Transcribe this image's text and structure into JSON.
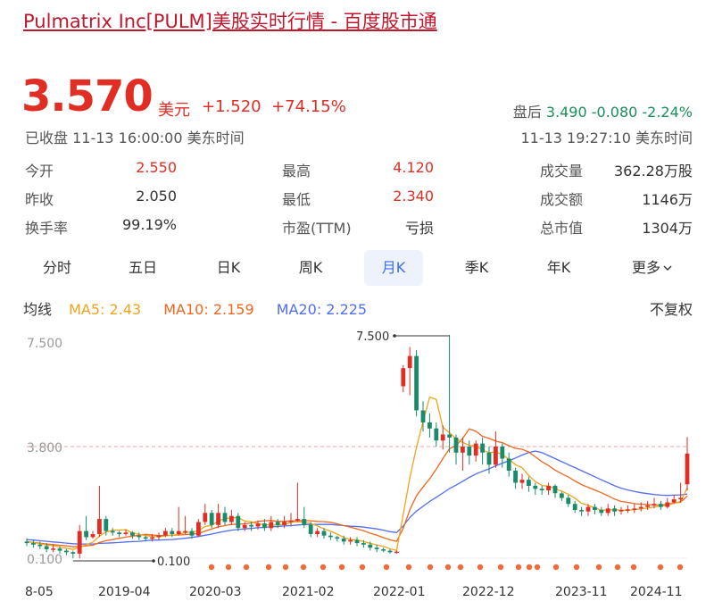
{
  "header": {
    "title": "Pulmatrix Inc[PULM]美股实时行情 - 百度股市通"
  },
  "quote": {
    "price": "3.570",
    "currency": "美元",
    "change": "+1.520",
    "change_pct": "+74.15%",
    "closed_label": "已收盘 11-13 16:00:00 美东时间",
    "after_label": "盘后",
    "after_price": "3.490",
    "after_change": "-0.080",
    "after_pct": "-2.24%",
    "after_time": "11-13 19:27:10 美东时间"
  },
  "stats": [
    {
      "label": "今开",
      "value": "2.550"
    },
    {
      "label": "最高",
      "value": "4.120"
    },
    {
      "label": "成交量",
      "value": "362.28万股"
    },
    {
      "label": "昨收",
      "value": "2.050"
    },
    {
      "label": "最低",
      "value": "2.340"
    },
    {
      "label": "成交额",
      "value": "1146万"
    },
    {
      "label": "换手率",
      "value": "99.19%"
    },
    {
      "label": "市盈(TTM)",
      "value": "亏损"
    },
    {
      "label": "总市值",
      "value": "1304万"
    }
  ],
  "tabs": [
    "分时",
    "五日",
    "日K",
    "周K",
    "月K",
    "季K",
    "年K",
    "更多"
  ],
  "active_tab": "月K",
  "ma": {
    "label": "均线",
    "ma5": "MA5: 2.43",
    "ma10": "MA10: 2.159",
    "ma20": "MA20: 2.225",
    "fq": "不复权"
  },
  "colors": {
    "up": "#e02e24",
    "down": "#1a8a6a",
    "ma5": "#f2a41c",
    "ma10": "#f0661c",
    "ma20": "#4f6ef2",
    "event_dot": "#f06a3a"
  },
  "chart_data": {
    "type": "candlestick",
    "y_labels": [
      "7.500",
      "3.800",
      "0.100"
    ],
    "x_labels": [
      "8-05",
      "2019-04",
      "2020-03",
      "2021-02",
      "2022-01",
      "2022-12",
      "2023-11",
      "2024-11"
    ],
    "max_annotation": "7.500",
    "min_annotation": "0.100",
    "candles": [
      [
        0.65,
        0.6,
        0.75,
        0.5
      ],
      [
        0.6,
        0.55,
        0.7,
        0.45
      ],
      [
        0.55,
        0.5,
        0.65,
        0.4
      ],
      [
        0.5,
        0.4,
        0.6,
        0.3
      ],
      [
        0.4,
        0.42,
        0.55,
        0.3
      ],
      [
        0.42,
        0.35,
        0.5,
        0.25
      ],
      [
        0.35,
        0.3,
        0.4,
        0.2
      ],
      [
        0.3,
        0.25,
        0.35,
        0.1
      ],
      [
        0.25,
        1.0,
        1.2,
        0.1
      ],
      [
        1.0,
        0.8,
        1.5,
        0.7
      ],
      [
        0.8,
        0.9,
        1.0,
        0.75
      ],
      [
        0.9,
        1.4,
        2.5,
        0.8
      ],
      [
        1.4,
        1.0,
        1.5,
        0.85
      ],
      [
        1.0,
        0.95,
        1.1,
        0.85
      ],
      [
        0.95,
        0.9,
        1.0,
        0.8
      ],
      [
        0.9,
        0.95,
        1.05,
        0.85
      ],
      [
        0.95,
        0.85,
        1.0,
        0.75
      ],
      [
        0.85,
        0.8,
        0.95,
        0.7
      ],
      [
        0.8,
        0.75,
        0.85,
        0.65
      ],
      [
        0.75,
        0.8,
        0.9,
        0.65
      ],
      [
        0.8,
        0.85,
        0.95,
        0.7
      ],
      [
        0.85,
        1.0,
        1.1,
        0.8
      ],
      [
        1.0,
        0.9,
        1.1,
        0.8
      ],
      [
        0.9,
        1.0,
        1.8,
        0.85
      ],
      [
        1.0,
        1.0,
        1.5,
        0.9
      ],
      [
        1.0,
        0.85,
        1.1,
        0.75
      ],
      [
        0.85,
        1.3,
        1.4,
        0.8
      ],
      [
        1.3,
        1.6,
        1.9,
        1.2
      ],
      [
        1.6,
        1.2,
        1.7,
        1.1
      ],
      [
        1.2,
        1.6,
        1.9,
        1.1
      ],
      [
        1.6,
        1.3,
        1.8,
        1.2
      ],
      [
        1.3,
        1.5,
        1.7,
        1.2
      ],
      [
        1.5,
        1.1,
        1.6,
        1.0
      ],
      [
        1.1,
        1.2,
        1.3,
        1.0
      ],
      [
        1.2,
        1.15,
        1.3,
        1.0
      ],
      [
        1.15,
        1.25,
        1.35,
        1.05
      ],
      [
        1.25,
        1.1,
        1.4,
        1.0
      ],
      [
        1.1,
        1.3,
        1.5,
        1.0
      ],
      [
        1.3,
        1.2,
        1.4,
        1.1
      ],
      [
        1.2,
        1.3,
        1.5,
        1.1
      ],
      [
        1.3,
        1.35,
        1.6,
        1.15
      ],
      [
        1.35,
        1.4,
        2.6,
        1.3
      ],
      [
        1.4,
        1.2,
        1.8,
        1.1
      ],
      [
        1.2,
        0.9,
        1.3,
        0.8
      ],
      [
        0.9,
        1.0,
        1.1,
        0.8
      ],
      [
        1.0,
        0.85,
        1.1,
        0.75
      ],
      [
        0.85,
        0.8,
        0.95,
        0.7
      ],
      [
        0.8,
        0.75,
        0.85,
        0.65
      ],
      [
        0.75,
        0.65,
        0.85,
        0.55
      ],
      [
        0.65,
        0.7,
        0.8,
        0.55
      ],
      [
        0.7,
        0.6,
        0.8,
        0.5
      ],
      [
        0.6,
        0.55,
        0.7,
        0.45
      ],
      [
        0.55,
        0.45,
        0.65,
        0.35
      ],
      [
        0.45,
        0.4,
        0.55,
        0.3
      ],
      [
        0.4,
        0.35,
        0.45,
        0.3
      ],
      [
        0.35,
        0.3,
        0.4,
        0.25
      ],
      [
        0.3,
        0.32,
        0.35,
        0.25
      ],
      [
        5.8,
        6.4,
        6.5,
        5.6
      ],
      [
        6.4,
        6.8,
        7.1,
        5.5
      ],
      [
        6.8,
        5.0,
        7.0,
        4.8
      ],
      [
        5.0,
        4.6,
        5.3,
        4.3
      ],
      [
        4.6,
        4.4,
        4.9,
        4.1
      ],
      [
        4.4,
        4.0,
        4.6,
        3.8
      ],
      [
        4.0,
        4.2,
        4.5,
        3.7
      ],
      [
        4.2,
        4.1,
        7.5,
        3.6
      ],
      [
        4.1,
        3.6,
        4.2,
        3.2
      ],
      [
        3.6,
        3.8,
        4.1,
        3.0
      ],
      [
        3.8,
        3.5,
        4.0,
        3.2
      ],
      [
        3.5,
        3.9,
        4.0,
        3.3
      ],
      [
        3.9,
        3.6,
        4.1,
        3.2
      ],
      [
        3.6,
        3.2,
        3.8,
        2.9
      ],
      [
        3.2,
        3.8,
        4.3,
        3.1
      ],
      [
        3.8,
        3.4,
        3.9,
        3.1
      ],
      [
        3.4,
        3.0,
        3.6,
        2.8
      ],
      [
        3.0,
        2.6,
        3.1,
        2.4
      ],
      [
        2.6,
        2.7,
        2.9,
        2.4
      ],
      [
        2.7,
        2.5,
        2.8,
        2.3
      ],
      [
        2.5,
        2.4,
        2.6,
        2.2
      ],
      [
        2.4,
        2.35,
        2.5,
        2.2
      ],
      [
        2.35,
        2.5,
        2.6,
        2.2
      ],
      [
        2.5,
        2.25,
        2.55,
        2.1
      ],
      [
        2.25,
        2.1,
        2.3,
        2.0
      ],
      [
        2.1,
        1.9,
        2.2,
        1.8
      ],
      [
        1.9,
        1.7,
        2.0,
        1.6
      ],
      [
        1.7,
        1.65,
        1.8,
        1.5
      ],
      [
        1.65,
        1.8,
        1.9,
        1.5
      ],
      [
        1.8,
        1.7,
        1.9,
        1.55
      ],
      [
        1.7,
        1.6,
        1.8,
        1.5
      ],
      [
        1.6,
        1.75,
        1.9,
        1.5
      ],
      [
        1.75,
        1.65,
        1.85,
        1.5
      ],
      [
        1.65,
        1.7,
        1.8,
        1.55
      ],
      [
        1.7,
        1.72,
        1.85,
        1.6
      ],
      [
        1.72,
        1.75,
        1.9,
        1.6
      ],
      [
        1.75,
        1.8,
        1.95,
        1.65
      ],
      [
        1.8,
        1.85,
        2.0,
        1.7
      ],
      [
        1.85,
        1.9,
        2.1,
        1.75
      ],
      [
        1.9,
        1.8,
        2.0,
        1.7
      ],
      [
        1.8,
        1.95,
        2.1,
        1.75
      ],
      [
        1.95,
        2.05,
        2.2,
        1.9
      ],
      [
        2.05,
        2.1,
        2.6,
        1.95
      ],
      [
        2.55,
        3.57,
        4.12,
        2.34
      ]
    ],
    "ma5": [
      0.65,
      0.62,
      0.58,
      0.54,
      0.52,
      0.47,
      0.43,
      0.39,
      0.46,
      0.55,
      0.63,
      0.83,
      0.97,
      1.03,
      1.03,
      1.04,
      0.94,
      0.89,
      0.85,
      0.83,
      0.81,
      0.84,
      0.86,
      0.89,
      0.95,
      0.96,
      1.01,
      1.15,
      1.19,
      1.33,
      1.41,
      1.44,
      1.44,
      1.33,
      1.31,
      1.24,
      1.21,
      1.2,
      1.2,
      1.22,
      1.29,
      1.31,
      1.29,
      1.25,
      1.17,
      1.07,
      0.99,
      0.9,
      0.79,
      0.72,
      0.7,
      0.65,
      0.59,
      0.54,
      0.49,
      0.41,
      0.36,
      1.56,
      2.76,
      3.77,
      4.62,
      5.44,
      5.36,
      4.44,
      4.26,
      4.06,
      3.94,
      3.84,
      3.82,
      3.68,
      3.6,
      3.62,
      3.54,
      3.38,
      3.2,
      3.1,
      2.84,
      2.64,
      2.51,
      2.49,
      2.4,
      2.32,
      2.22,
      2.09,
      1.92,
      1.85,
      1.77,
      1.69,
      1.7,
      1.7,
      1.69,
      1.69,
      1.71,
      1.73,
      1.76,
      1.8,
      1.82,
      1.86,
      1.92,
      1.98,
      2.43
    ],
    "ma10": [
      0.65,
      0.62,
      0.6,
      0.57,
      0.55,
      0.53,
      0.51,
      0.48,
      0.49,
      0.51,
      0.53,
      0.62,
      0.68,
      0.72,
      0.76,
      0.8,
      0.83,
      0.86,
      0.89,
      0.87,
      0.85,
      0.85,
      0.86,
      0.87,
      0.88,
      0.9,
      0.92,
      1.0,
      1.07,
      1.14,
      1.18,
      1.22,
      1.23,
      1.24,
      1.27,
      1.32,
      1.34,
      1.35,
      1.32,
      1.32,
      1.33,
      1.34,
      1.35,
      1.34,
      1.32,
      1.31,
      1.29,
      1.24,
      1.18,
      1.13,
      1.07,
      1.01,
      0.93,
      0.86,
      0.78,
      0.71,
      0.66,
      1.09,
      1.7,
      2.17,
      2.46,
      2.73,
      3.05,
      3.4,
      3.73,
      3.83,
      4.07,
      4.39,
      4.31,
      4.14,
      4.07,
      3.98,
      3.93,
      3.83,
      3.74,
      3.71,
      3.62,
      3.46,
      3.3,
      3.17,
      3.02,
      2.9,
      2.79,
      2.66,
      2.54,
      2.45,
      2.36,
      2.27,
      2.17,
      2.06,
      1.98,
      1.95,
      1.91,
      1.89,
      1.88,
      1.86,
      1.86,
      1.89,
      1.93,
      1.96,
      2.16
    ],
    "ma20": [
      0.72,
      0.7,
      0.68,
      0.66,
      0.64,
      0.62,
      0.6,
      0.58,
      0.57,
      0.57,
      0.57,
      0.59,
      0.6,
      0.61,
      0.62,
      0.64,
      0.65,
      0.66,
      0.68,
      0.7,
      0.7,
      0.71,
      0.72,
      0.74,
      0.76,
      0.79,
      0.82,
      0.86,
      0.9,
      0.95,
      0.99,
      1.03,
      1.05,
      1.07,
      1.09,
      1.11,
      1.12,
      1.14,
      1.15,
      1.17,
      1.18,
      1.2,
      1.21,
      1.22,
      1.22,
      1.22,
      1.22,
      1.2,
      1.18,
      1.16,
      1.15,
      1.13,
      1.1,
      1.07,
      1.03,
      0.98,
      0.95,
      1.17,
      1.45,
      1.66,
      1.82,
      1.98,
      2.12,
      2.26,
      2.41,
      2.52,
      2.65,
      2.78,
      2.89,
      2.98,
      3.06,
      3.16,
      3.25,
      3.33,
      3.42,
      3.52,
      3.6,
      3.65,
      3.6,
      3.5,
      3.4,
      3.3,
      3.2,
      3.1,
      3.0,
      2.9,
      2.8,
      2.7,
      2.6,
      2.5,
      2.42,
      2.36,
      2.31,
      2.27,
      2.24,
      2.21,
      2.19,
      2.18,
      2.19,
      2.2,
      2.225
    ]
  }
}
